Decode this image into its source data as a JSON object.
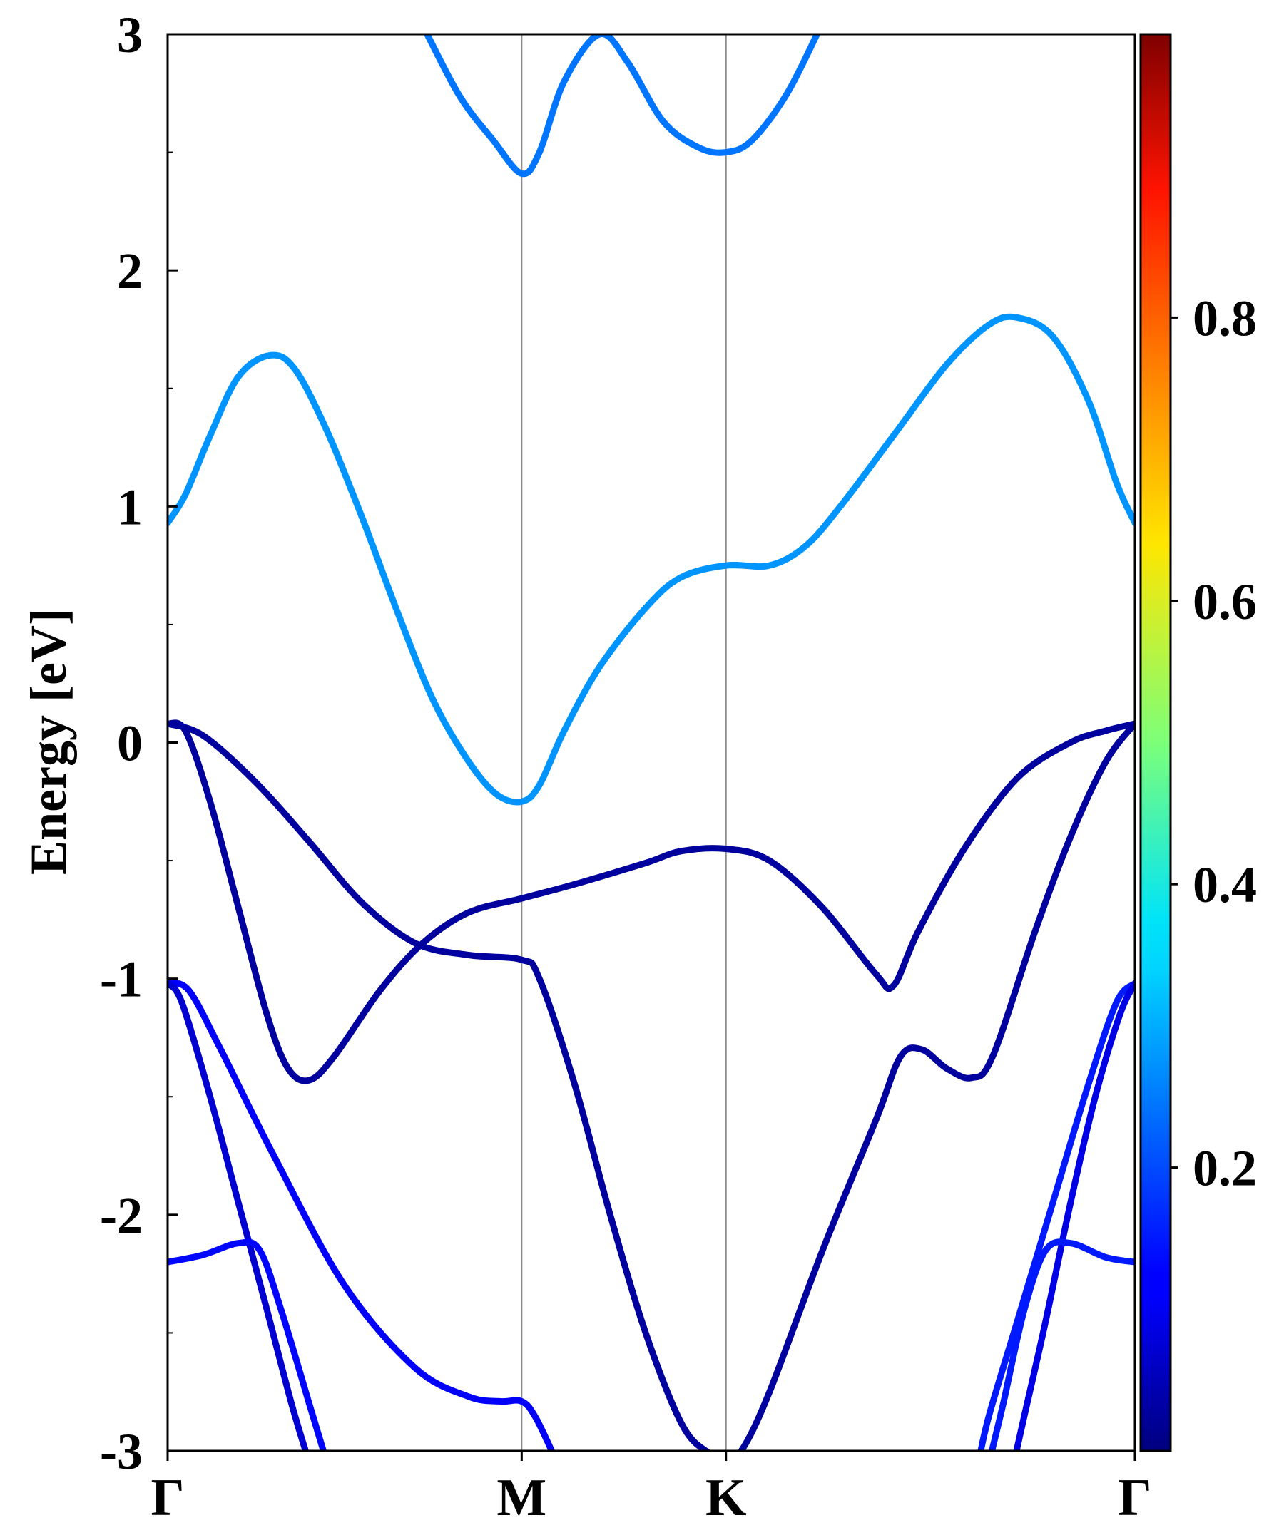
{
  "chart_data": {
    "type": "line",
    "ylabel": "Energy [eV]",
    "ylim": [
      -3,
      3
    ],
    "y_ticks": [
      "3",
      "2",
      "1",
      "0",
      "-1",
      "-2",
      "-3"
    ],
    "y_tick_values": [
      3,
      2,
      1,
      0,
      -1,
      -2,
      -3
    ],
    "y_minor_step": 0.5,
    "x_ticks": [
      "Γ",
      "M",
      "K",
      "Γ"
    ],
    "x_tick_positions": [
      0,
      1,
      1.577,
      2.732
    ],
    "xlim": [
      0,
      2.732
    ],
    "grid": "vertical lines at high-symmetry points",
    "colorbar": {
      "colormap": "jet",
      "range": [
        0,
        1
      ],
      "tick_values": [
        0.2,
        0.4,
        0.6,
        0.8
      ],
      "tick_labels": [
        "0.2",
        "0.4",
        "0.6",
        "0.8"
      ]
    },
    "series": [
      {
        "weight": 0.24,
        "points": [
          [
            0.7,
            3.1
          ],
          [
            0.82,
            2.75
          ],
          [
            0.92,
            2.55
          ],
          [
            1.0,
            2.41
          ],
          [
            1.05,
            2.5
          ],
          [
            1.12,
            2.8
          ],
          [
            1.22,
            3.0
          ],
          [
            1.3,
            2.88
          ],
          [
            1.4,
            2.63
          ],
          [
            1.5,
            2.52
          ],
          [
            1.577,
            2.5
          ],
          [
            1.65,
            2.55
          ],
          [
            1.75,
            2.75
          ],
          [
            1.85,
            3.05
          ]
        ]
      },
      {
        "weight": 0.27,
        "points": [
          [
            0,
            0.93
          ],
          [
            0.05,
            1.05
          ],
          [
            0.12,
            1.3
          ],
          [
            0.2,
            1.55
          ],
          [
            0.29,
            1.64
          ],
          [
            0.36,
            1.58
          ],
          [
            0.45,
            1.32
          ],
          [
            0.55,
            0.95
          ],
          [
            0.65,
            0.55
          ],
          [
            0.75,
            0.18
          ],
          [
            0.85,
            -0.08
          ],
          [
            0.93,
            -0.22
          ],
          [
            1.0,
            -0.25
          ],
          [
            1.05,
            -0.18
          ],
          [
            1.12,
            0.05
          ],
          [
            1.22,
            0.32
          ],
          [
            1.35,
            0.57
          ],
          [
            1.45,
            0.7
          ],
          [
            1.577,
            0.75
          ],
          [
            1.7,
            0.75
          ],
          [
            1.8,
            0.83
          ],
          [
            1.9,
            1.0
          ],
          [
            2.05,
            1.3
          ],
          [
            2.2,
            1.6
          ],
          [
            2.32,
            1.77
          ],
          [
            2.4,
            1.8
          ],
          [
            2.5,
            1.72
          ],
          [
            2.6,
            1.45
          ],
          [
            2.68,
            1.1
          ],
          [
            2.732,
            0.93
          ]
        ]
      },
      {
        "weight": 0.03,
        "points": [
          [
            0,
            0.08
          ],
          [
            0.05,
            0.05
          ],
          [
            0.12,
            -0.25
          ],
          [
            0.2,
            -0.7
          ],
          [
            0.28,
            -1.15
          ],
          [
            0.34,
            -1.38
          ],
          [
            0.4,
            -1.43
          ],
          [
            0.47,
            -1.33
          ],
          [
            0.6,
            -1.05
          ],
          [
            0.72,
            -0.85
          ],
          [
            0.85,
            -0.72
          ],
          [
            1.0,
            -0.66
          ],
          [
            1.15,
            -0.6
          ],
          [
            1.35,
            -0.51
          ],
          [
            1.45,
            -0.46
          ],
          [
            1.577,
            -0.45
          ],
          [
            1.7,
            -0.5
          ],
          [
            1.85,
            -0.7
          ],
          [
            2.0,
            -0.98
          ],
          [
            2.05,
            -1.03
          ],
          [
            2.12,
            -0.8
          ],
          [
            2.25,
            -0.45
          ],
          [
            2.4,
            -0.15
          ],
          [
            2.55,
            0.0
          ],
          [
            2.65,
            0.05
          ],
          [
            2.732,
            0.08
          ]
        ]
      },
      {
        "weight": 0.03,
        "points": [
          [
            0,
            0.08
          ],
          [
            0.1,
            0.03
          ],
          [
            0.25,
            -0.17
          ],
          [
            0.4,
            -0.42
          ],
          [
            0.55,
            -0.68
          ],
          [
            0.7,
            -0.85
          ],
          [
            0.85,
            -0.9
          ],
          [
            1.0,
            -0.92
          ],
          [
            1.05,
            -1.0
          ],
          [
            1.15,
            -1.45
          ],
          [
            1.25,
            -2.0
          ],
          [
            1.35,
            -2.5
          ],
          [
            1.45,
            -2.88
          ],
          [
            1.52,
            -3.0
          ],
          [
            1.577,
            -3.02
          ],
          [
            1.62,
            -3.0
          ],
          [
            1.7,
            -2.75
          ],
          [
            1.85,
            -2.15
          ],
          [
            2.0,
            -1.6
          ],
          [
            2.07,
            -1.33
          ],
          [
            2.13,
            -1.3
          ],
          [
            2.2,
            -1.38
          ],
          [
            2.27,
            -1.42
          ],
          [
            2.33,
            -1.33
          ],
          [
            2.45,
            -0.8
          ],
          [
            2.55,
            -0.4
          ],
          [
            2.65,
            -0.08
          ],
          [
            2.732,
            0.08
          ]
        ]
      },
      {
        "weight": 0.12,
        "points": [
          [
            0,
            -1.02
          ],
          [
            0.06,
            -1.05
          ],
          [
            0.15,
            -1.3
          ],
          [
            0.3,
            -1.75
          ],
          [
            0.5,
            -2.3
          ],
          [
            0.7,
            -2.65
          ],
          [
            0.85,
            -2.77
          ],
          [
            0.94,
            -2.79
          ],
          [
            1.0,
            -2.79
          ],
          [
            1.04,
            -2.86
          ],
          [
            1.1,
            -3.05
          ]
        ]
      },
      {
        "weight": 0.08,
        "points": [
          [
            0,
            -1.02
          ],
          [
            0.04,
            -1.1
          ],
          [
            0.12,
            -1.5
          ],
          [
            0.2,
            -1.95
          ],
          [
            0.28,
            -2.4
          ],
          [
            0.35,
            -2.8
          ],
          [
            0.4,
            -3.05
          ]
        ]
      },
      {
        "weight": 0.13,
        "points": [
          [
            0,
            -2.2
          ],
          [
            0.1,
            -2.17
          ],
          [
            0.2,
            -2.12
          ],
          [
            0.26,
            -2.15
          ],
          [
            0.32,
            -2.4
          ],
          [
            0.4,
            -2.8
          ],
          [
            0.45,
            -3.05
          ]
        ]
      },
      {
        "weight": 0.15,
        "points": [
          [
            2.732,
            -1.02
          ],
          [
            2.68,
            -1.1
          ],
          [
            2.6,
            -1.45
          ],
          [
            2.5,
            -1.95
          ],
          [
            2.4,
            -2.45
          ],
          [
            2.32,
            -2.85
          ],
          [
            2.29,
            -3.05
          ]
        ]
      },
      {
        "weight": 0.1,
        "points": [
          [
            2.732,
            -1.02
          ],
          [
            2.69,
            -1.15
          ],
          [
            2.62,
            -1.5
          ],
          [
            2.55,
            -1.95
          ],
          [
            2.48,
            -2.45
          ],
          [
            2.42,
            -2.85
          ],
          [
            2.39,
            -3.05
          ]
        ]
      },
      {
        "weight": 0.15,
        "points": [
          [
            2.732,
            -2.2
          ],
          [
            2.65,
            -2.18
          ],
          [
            2.55,
            -2.12
          ],
          [
            2.48,
            -2.15
          ],
          [
            2.42,
            -2.4
          ],
          [
            2.36,
            -2.8
          ],
          [
            2.32,
            -3.05
          ]
        ]
      }
    ]
  }
}
